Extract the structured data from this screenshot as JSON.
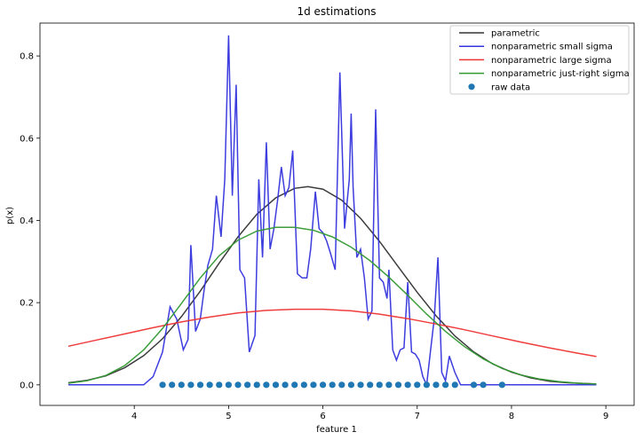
{
  "chart_data": {
    "type": "line",
    "title": "1d estimations",
    "xlabel": "feature 1",
    "ylabel": "p(x)",
    "xlim": [
      3.0,
      9.3
    ],
    "ylim": [
      -0.05,
      0.88
    ],
    "xticks": [
      4,
      5,
      6,
      7,
      8,
      9
    ],
    "yticks": [
      0.0,
      0.2,
      0.4,
      0.6,
      0.8
    ],
    "grid": false,
    "legend_position": "top-right",
    "series": [
      {
        "name": "parametric",
        "kind": "line",
        "color": "#333333",
        "x": [
          3.3,
          3.5,
          3.7,
          3.9,
          4.1,
          4.3,
          4.5,
          4.7,
          4.9,
          5.1,
          5.3,
          5.5,
          5.7,
          5.84,
          6.0,
          6.2,
          6.4,
          6.6,
          6.8,
          7.0,
          7.2,
          7.4,
          7.6,
          7.8,
          8.0,
          8.2,
          8.4,
          8.6,
          8.9
        ],
        "y": [
          0.005,
          0.011,
          0.022,
          0.042,
          0.071,
          0.112,
          0.166,
          0.228,
          0.296,
          0.36,
          0.415,
          0.455,
          0.478,
          0.482,
          0.476,
          0.449,
          0.405,
          0.349,
          0.287,
          0.225,
          0.168,
          0.119,
          0.08,
          0.051,
          0.031,
          0.017,
          0.009,
          0.005,
          0.002
        ]
      },
      {
        "name": "nonparametric small sigma",
        "kind": "line",
        "color": "#3333dd",
        "x": [
          3.3,
          4.1,
          4.2,
          4.3,
          4.38,
          4.45,
          4.52,
          4.57,
          4.6,
          4.65,
          4.7,
          4.74,
          4.78,
          4.83,
          4.87,
          4.92,
          4.96,
          5.0,
          5.04,
          5.08,
          5.12,
          5.17,
          5.22,
          5.28,
          5.32,
          5.36,
          5.4,
          5.44,
          5.48,
          5.52,
          5.56,
          5.6,
          5.64,
          5.68,
          5.73,
          5.78,
          5.83,
          5.87,
          5.92,
          5.96,
          6.0,
          6.04,
          6.08,
          6.13,
          6.18,
          6.23,
          6.28,
          6.3,
          6.32,
          6.36,
          6.4,
          6.44,
          6.48,
          6.52,
          6.56,
          6.6,
          6.64,
          6.68,
          6.7,
          6.74,
          6.78,
          6.82,
          6.86,
          6.9,
          6.94,
          6.98,
          7.02,
          7.06,
          7.1,
          7.14,
          7.18,
          7.22,
          7.26,
          7.3,
          7.34,
          7.4,
          7.46,
          7.52,
          7.56,
          7.6,
          7.64,
          7.68,
          7.72,
          7.76,
          7.8,
          7.84,
          7.88,
          7.92,
          7.97,
          8.02,
          8.9
        ],
        "y": [
          0.0,
          0.0,
          0.02,
          0.08,
          0.19,
          0.16,
          0.085,
          0.11,
          0.34,
          0.13,
          0.16,
          0.23,
          0.29,
          0.33,
          0.46,
          0.36,
          0.5,
          0.85,
          0.46,
          0.73,
          0.28,
          0.26,
          0.08,
          0.12,
          0.5,
          0.31,
          0.59,
          0.33,
          0.38,
          0.45,
          0.53,
          0.46,
          0.48,
          0.57,
          0.27,
          0.26,
          0.26,
          0.33,
          0.47,
          0.38,
          0.37,
          0.35,
          0.32,
          0.28,
          0.76,
          0.38,
          0.5,
          0.66,
          0.48,
          0.31,
          0.33,
          0.26,
          0.16,
          0.18,
          0.67,
          0.26,
          0.25,
          0.21,
          0.28,
          0.085,
          0.06,
          0.085,
          0.09,
          0.25,
          0.08,
          0.075,
          0.06,
          0.02,
          0.0,
          0.08,
          0.16,
          0.31,
          0.03,
          0.01,
          0.07,
          0.03,
          0.0,
          0.0,
          0.0,
          0.0,
          0.0,
          0.0,
          0.0,
          0.0,
          0.0,
          0.0,
          0.0,
          0.0,
          0.0,
          0.0,
          0.0
        ]
      },
      {
        "name": "nonparametric large sigma",
        "kind": "line",
        "color": "#ee3333",
        "x": [
          3.3,
          3.6,
          3.9,
          4.2,
          4.5,
          4.8,
          5.1,
          5.4,
          5.7,
          6.0,
          6.3,
          6.6,
          6.9,
          7.2,
          7.5,
          7.8,
          8.1,
          8.4,
          8.7,
          8.9
        ],
        "y": [
          0.094,
          0.109,
          0.124,
          0.139,
          0.153,
          0.165,
          0.175,
          0.181,
          0.184,
          0.184,
          0.18,
          0.172,
          0.161,
          0.148,
          0.134,
          0.119,
          0.104,
          0.09,
          0.077,
          0.069
        ]
      },
      {
        "name": "nonparametric just-right sigma",
        "kind": "line",
        "color": "#339933",
        "x": [
          3.3,
          3.5,
          3.7,
          3.9,
          4.1,
          4.3,
          4.5,
          4.7,
          4.9,
          5.1,
          5.3,
          5.5,
          5.7,
          5.9,
          6.1,
          6.3,
          6.5,
          6.7,
          6.9,
          7.1,
          7.3,
          7.5,
          7.7,
          7.9,
          8.1,
          8.3,
          8.5,
          8.7,
          8.9
        ],
        "y": [
          0.004,
          0.01,
          0.023,
          0.047,
          0.085,
          0.137,
          0.198,
          0.26,
          0.314,
          0.352,
          0.374,
          0.383,
          0.383,
          0.376,
          0.36,
          0.335,
          0.302,
          0.262,
          0.218,
          0.172,
          0.13,
          0.093,
          0.063,
          0.04,
          0.024,
          0.014,
          0.008,
          0.004,
          0.002
        ]
      },
      {
        "name": "raw data",
        "kind": "scatter",
        "color": "#1f77b4",
        "x": [
          4.3,
          4.4,
          4.5,
          4.6,
          4.7,
          4.8,
          4.9,
          5.0,
          5.1,
          5.2,
          5.3,
          5.4,
          5.5,
          5.6,
          5.7,
          5.8,
          5.9,
          6.0,
          6.1,
          6.2,
          6.3,
          6.4,
          6.5,
          6.6,
          6.7,
          6.8,
          6.9,
          7.0,
          7.1,
          7.2,
          7.3,
          7.4,
          7.6,
          7.7,
          7.9
        ],
        "y": [
          0,
          0,
          0,
          0,
          0,
          0,
          0,
          0,
          0,
          0,
          0,
          0,
          0,
          0,
          0,
          0,
          0,
          0,
          0,
          0,
          0,
          0,
          0,
          0,
          0,
          0,
          0,
          0,
          0,
          0,
          0,
          0,
          0,
          0,
          0
        ]
      }
    ]
  }
}
